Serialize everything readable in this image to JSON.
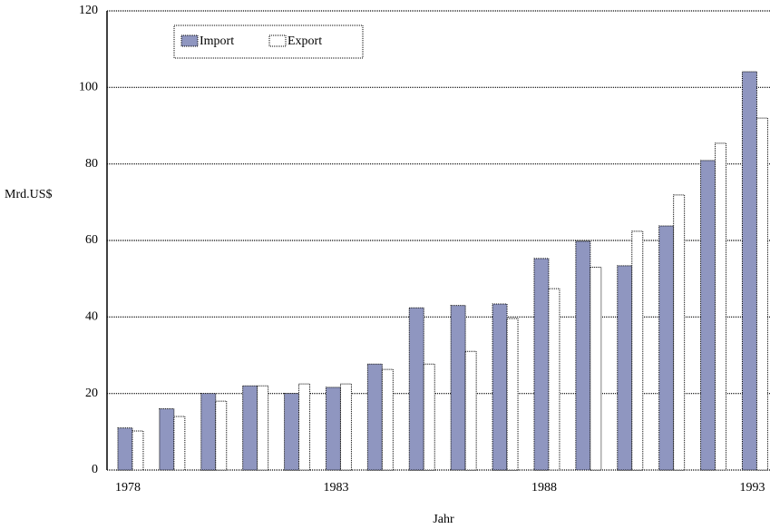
{
  "chart_data": {
    "type": "bar",
    "x_label": "Jahr",
    "y_label": "Mrd.US$",
    "categories": [
      "1978",
      null,
      null,
      null,
      null,
      "1983",
      null,
      null,
      null,
      null,
      "1988",
      null,
      null,
      null,
      null,
      "1993"
    ],
    "series": [
      {
        "name": "Import",
        "color": "#8f96c0",
        "values": [
          11,
          16,
          20,
          22,
          20,
          21.6,
          27.7,
          42.4,
          43,
          43.4,
          55.3,
          59.8,
          53.4,
          63.8,
          80.9,
          104.1
        ]
      },
      {
        "name": "Export",
        "color": "#ffffff",
        "values": [
          10.2,
          14,
          18,
          22,
          22.5,
          22.5,
          26.3,
          27.7,
          31,
          39.6,
          47.4,
          53,
          62.4,
          71.9,
          85.4,
          92
        ]
      }
    ],
    "ylim": [
      0,
      120
    ],
    "yticks": [
      0,
      20,
      40,
      60,
      80,
      100,
      120
    ],
    "grid": true,
    "legend": "top-left"
  }
}
